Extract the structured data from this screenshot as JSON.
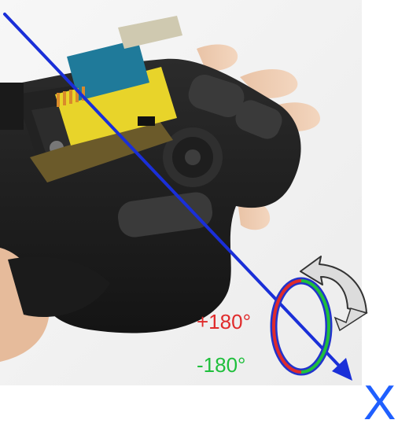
{
  "labels": {
    "positive_angle": "+180°",
    "negative_angle": "-180°",
    "axis": "X"
  },
  "colors": {
    "axis_arrow": "#1a2fd8",
    "positive": "#e02b2b",
    "negative": "#1fbf3c",
    "ring_inner": "#2233cc",
    "rotation_arrow": "#dcdcdc"
  },
  "icons": {
    "rotation": "curved-arrow-icon"
  }
}
